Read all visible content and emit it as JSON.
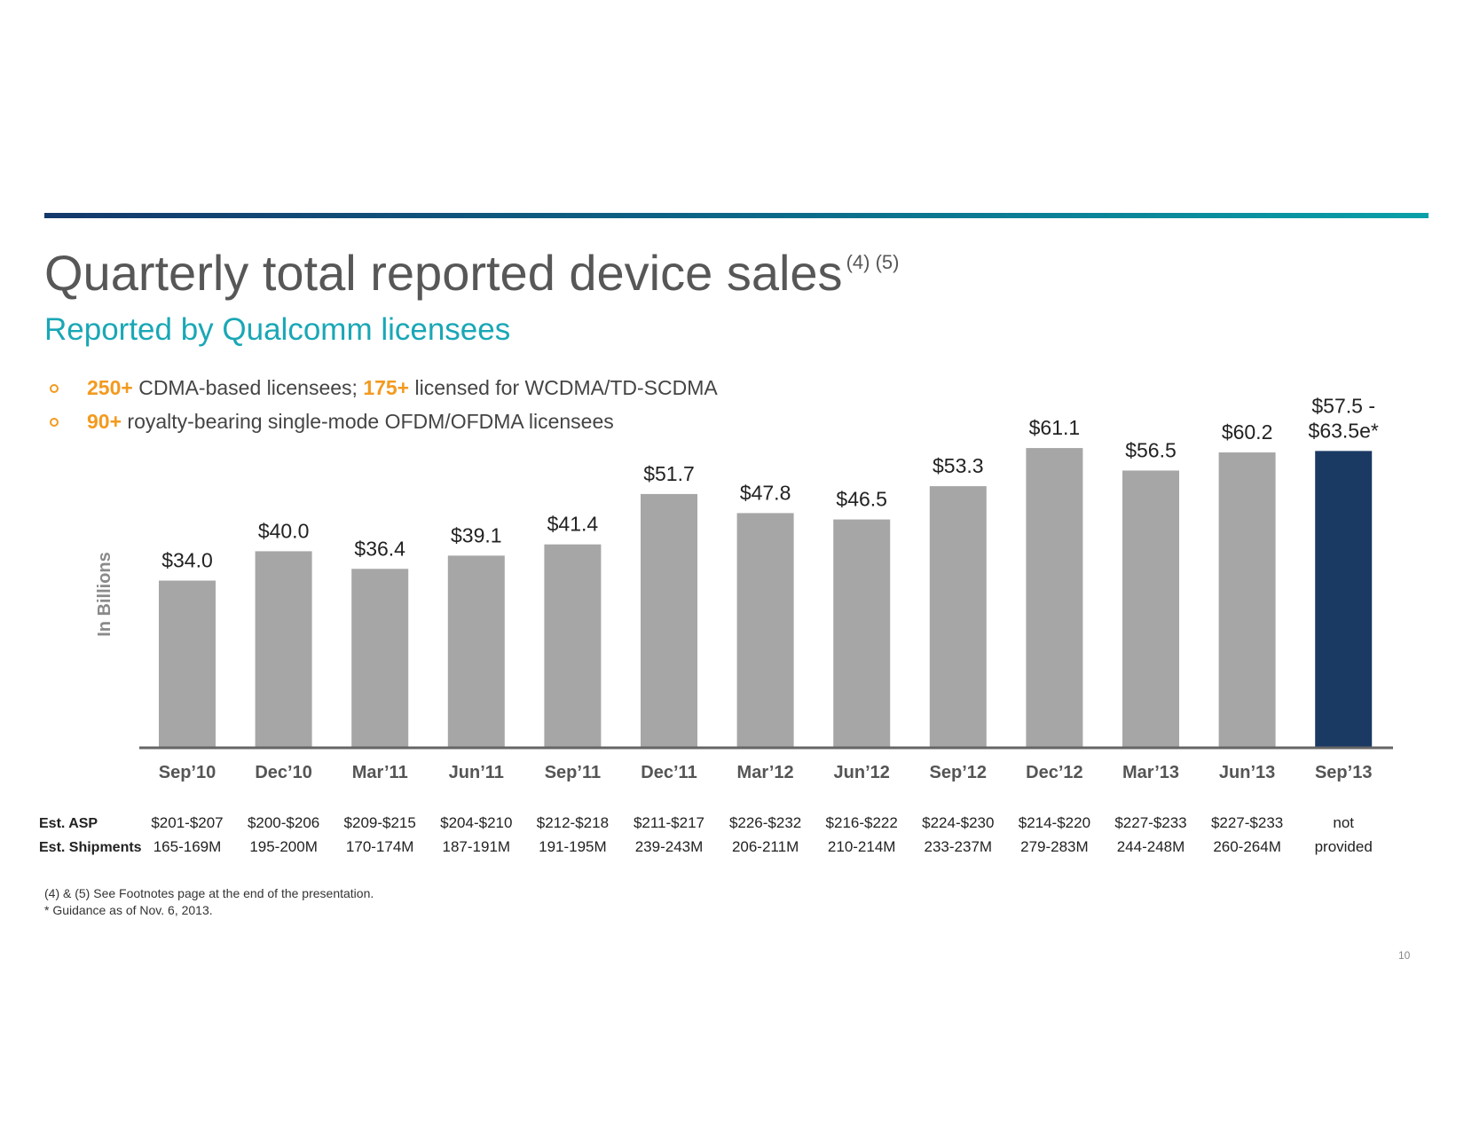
{
  "header": {
    "title": "Quarterly total reported device sales",
    "title_sup": "(4) (5)",
    "subtitle": "Reported by Qualcomm licensees"
  },
  "bullets": [
    {
      "a1": "250+",
      "t1": " CDMA-based licensees; ",
      "a2": "175+",
      "t2": " licensed for WCDMA/TD-SCDMA"
    },
    {
      "a1": "90+",
      "t1": " royalty-bearing single-mode OFDM/OFDMA licensees",
      "a2": "",
      "t2": ""
    }
  ],
  "colors": {
    "bar": "#a6a6a6",
    "highlight": "#1a3a64",
    "axis": "#666666",
    "accent": "#f39a1f",
    "subtitle": "#1aa7b6"
  },
  "chart_data": {
    "type": "bar",
    "ylabel": "In Billions",
    "ylim": [
      0,
      70
    ],
    "categories": [
      "Sep’10",
      "Dec’10",
      "Mar’11",
      "Jun’11",
      "Sep’11",
      "Dec’11",
      "Mar’12",
      "Jun’12",
      "Sep’12",
      "Dec’12",
      "Mar’13",
      "Jun’13",
      "Sep’13"
    ],
    "values": [
      34.0,
      40.0,
      36.4,
      39.1,
      41.4,
      51.7,
      47.8,
      46.5,
      53.3,
      61.1,
      56.5,
      60.2,
      60.5
    ],
    "labels": [
      "$34.0",
      "$40.0",
      "$36.4",
      "$39.1",
      "$41.4",
      "$51.7",
      "$47.8",
      "$46.5",
      "$53.3",
      "$61.1",
      "$56.5",
      "$60.2",
      "$57.5 -|$63.5e*"
    ],
    "highlight_index": 12,
    "guidance_range": [
      57.5,
      63.5
    ]
  },
  "table": {
    "asp_label": "Est. ASP",
    "shipments_label": "Est. Shipments",
    "asp": [
      "$201-$207",
      "$200-$206",
      "$209-$215",
      "$204-$210",
      "$212-$218",
      "$211-$217",
      "$226-$232",
      "$216-$222",
      "$224-$230",
      "$214-$220",
      "$227-$233",
      "$227-$233",
      "not"
    ],
    "shipments": [
      "165-169M",
      "195-200M",
      "170-174M",
      "187-191M",
      "191-195M",
      "239-243M",
      "206-211M",
      "210-214M",
      "233-237M",
      "279-283M",
      "244-248M",
      "260-264M",
      "provided"
    ]
  },
  "footnotes": {
    "line1": "(4) & (5) See Footnotes page at the end of the presentation.",
    "line2": "* Guidance as of Nov. 6, 2013."
  },
  "page_number": "10"
}
